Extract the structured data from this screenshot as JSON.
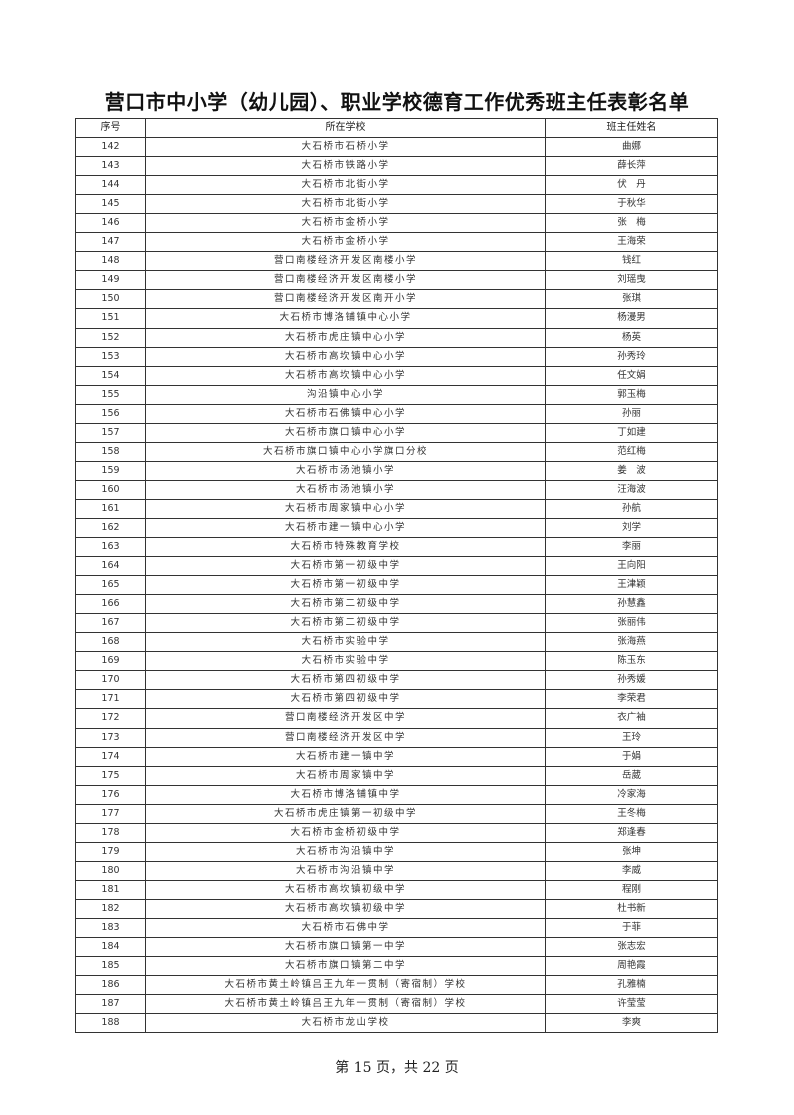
{
  "title": "营口市中小学（幼儿园）、职业学校德育工作优秀班主任表彰名单",
  "table": {
    "headers": [
      "序号",
      "所在学校",
      "班主任姓名"
    ],
    "rows": [
      [
        "142",
        "大石桥市石桥小学",
        "曲娜"
      ],
      [
        "143",
        "大石桥市铁路小学",
        "薛长萍"
      ],
      [
        "144",
        "大石桥市北街小学",
        "伏　丹"
      ],
      [
        "145",
        "大石桥市北街小学",
        "于秋华"
      ],
      [
        "146",
        "大石桥市金桥小学",
        "张　梅"
      ],
      [
        "147",
        "大石桥市金桥小学",
        "王海荣"
      ],
      [
        "148",
        "营口南楼经济开发区南楼小学",
        "钱红"
      ],
      [
        "149",
        "营口南楼经济开发区南楼小学",
        "刘瑶曳"
      ],
      [
        "150",
        "营口南楼经济开发区南开小学",
        "张琪"
      ],
      [
        "151",
        "大石桥市博洛铺镇中心小学",
        "杨漫男"
      ],
      [
        "152",
        "大石桥市虎庄镇中心小学",
        "杨英"
      ],
      [
        "153",
        "大石桥市高坎镇中心小学",
        "孙秀玲"
      ],
      [
        "154",
        "大石桥市高坎镇中心小学",
        "任文娟"
      ],
      [
        "155",
        "沟沿镇中心小学",
        "郭玉梅"
      ],
      [
        "156",
        "大石桥市石佛镇中心小学",
        "孙丽"
      ],
      [
        "157",
        "大石桥市旗口镇中心小学",
        "丁如建"
      ],
      [
        "158",
        "大石桥市旗口镇中心小学旗口分校",
        "范红梅"
      ],
      [
        "159",
        "大石桥市汤池镇小学",
        "姜　波"
      ],
      [
        "160",
        "大石桥市汤池镇小学",
        "汪海波"
      ],
      [
        "161",
        "大石桥市周家镇中心小学",
        "孙航"
      ],
      [
        "162",
        "大石桥市建一镇中心小学",
        "刘学"
      ],
      [
        "163",
        "大石桥市特殊教育学校",
        "李丽"
      ],
      [
        "164",
        "大石桥市第一初级中学",
        "王向阳"
      ],
      [
        "165",
        "大石桥市第一初级中学",
        "王津颖"
      ],
      [
        "166",
        "大石桥市第二初级中学",
        "孙慧鑫"
      ],
      [
        "167",
        "大石桥市第二初级中学",
        "张丽伟"
      ],
      [
        "168",
        "大石桥市实验中学",
        "张海燕"
      ],
      [
        "169",
        "大石桥市实验中学",
        "陈玉东"
      ],
      [
        "170",
        "大石桥市第四初级中学",
        "孙秀媛"
      ],
      [
        "171",
        "大石桥市第四初级中学",
        "李荣君"
      ],
      [
        "172",
        "营口南楼经济开发区中学",
        "衣广袖"
      ],
      [
        "173",
        "营口南楼经济开发区中学",
        "王玲"
      ],
      [
        "174",
        "大石桥市建一镇中学",
        "于娟"
      ],
      [
        "175",
        "大石桥市周家镇中学",
        "岳葳"
      ],
      [
        "176",
        "大石桥市博洛铺镇中学",
        "冷家海"
      ],
      [
        "177",
        "大石桥市虎庄镇第一初级中学",
        "王冬梅"
      ],
      [
        "178",
        "大石桥市金桥初级中学",
        "郑逢春"
      ],
      [
        "179",
        "大石桥市沟沿镇中学",
        "张坤"
      ],
      [
        "180",
        "大石桥市沟沿镇中学",
        "李威"
      ],
      [
        "181",
        "大石桥市高坎镇初级中学",
        "程刚"
      ],
      [
        "182",
        "大石桥市高坎镇初级中学",
        "杜书新"
      ],
      [
        "183",
        "大石桥市石佛中学",
        "于菲"
      ],
      [
        "184",
        "大石桥市旗口镇第一中学",
        "张志宏"
      ],
      [
        "185",
        "大石桥市旗口镇第二中学",
        "周艳霞"
      ],
      [
        "186",
        "大石桥市黄土岭镇吕王九年一贯制（寄宿制）学校",
        "孔雅楠"
      ],
      [
        "187",
        "大石桥市黄土岭镇吕王九年一贯制（寄宿制）学校",
        "许莹莹"
      ],
      [
        "188",
        "大石桥市龙山学校",
        "李爽"
      ]
    ]
  },
  "footer": "第 15 页，共 22 页"
}
